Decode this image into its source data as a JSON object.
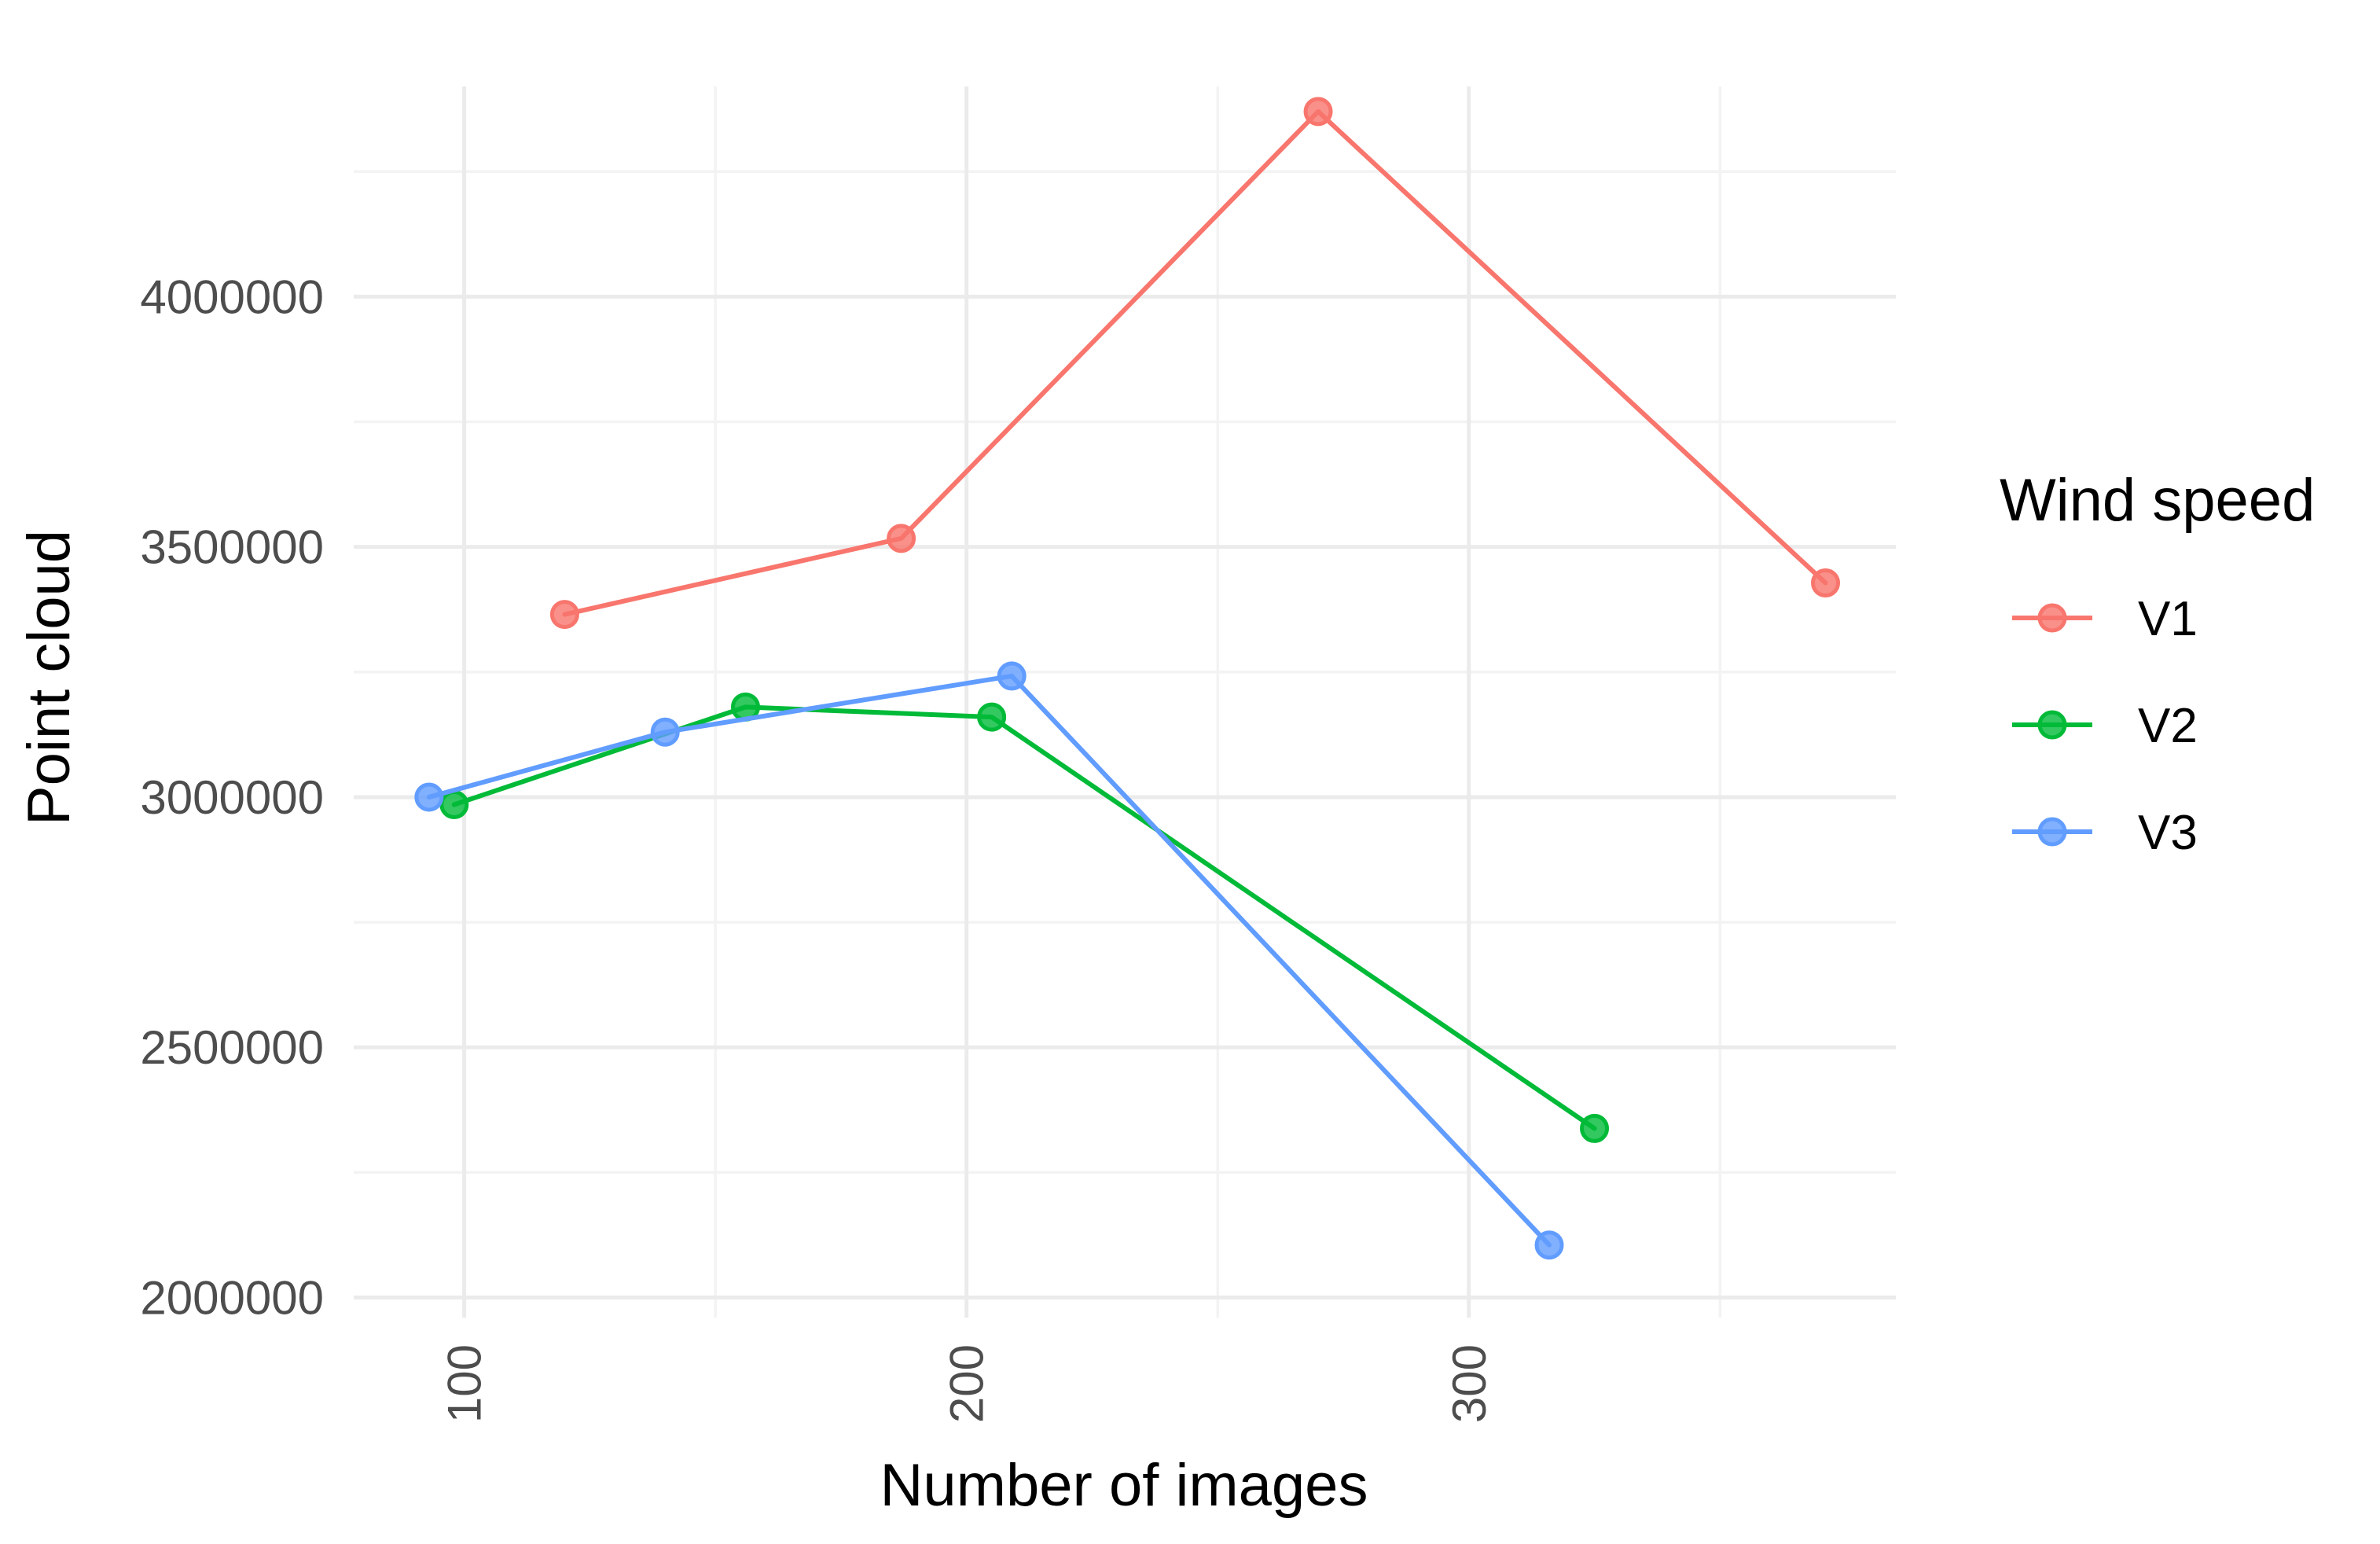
{
  "chart_data": {
    "type": "line",
    "title": "",
    "xlabel": "Number of images",
    "ylabel": "Point cloud",
    "xlim": [
      78,
      385
    ],
    "ylim": [
      1960000,
      4420000
    ],
    "x_ticks": [
      100,
      200,
      300
    ],
    "x_tick_labels": [
      "100",
      "200",
      "300"
    ],
    "x_minor_ticks": [
      150,
      250,
      350
    ],
    "y_ticks": [
      2000000,
      2500000,
      3000000,
      3500000,
      4000000
    ],
    "y_tick_labels": [
      "2000000",
      "2500000",
      "3000000",
      "3500000",
      "4000000"
    ],
    "y_minor_ticks": [
      2250000,
      2750000,
      3250000,
      3750000,
      4250000
    ],
    "x_tick_rotation": "vertical",
    "grid": true,
    "legend": {
      "title": "Wind speed",
      "position": "right"
    },
    "series": [
      {
        "name": "V1",
        "color": "#F8766D",
        "points": [
          {
            "x": 120,
            "y": 3365000
          },
          {
            "x": 187,
            "y": 3517000
          },
          {
            "x": 270,
            "y": 4370000
          },
          {
            "x": 371,
            "y": 3428000
          }
        ]
      },
      {
        "name": "V2",
        "color": "#00BA38",
        "points": [
          {
            "x": 98,
            "y": 2985000
          },
          {
            "x": 156,
            "y": 3180000
          },
          {
            "x": 205,
            "y": 3160000
          },
          {
            "x": 325,
            "y": 2338000
          }
        ]
      },
      {
        "name": "V3",
        "color": "#619CFF",
        "points": [
          {
            "x": 93,
            "y": 3000000
          },
          {
            "x": 140,
            "y": 3130000
          },
          {
            "x": 209,
            "y": 3242000
          },
          {
            "x": 316,
            "y": 2105000
          }
        ]
      }
    ]
  }
}
